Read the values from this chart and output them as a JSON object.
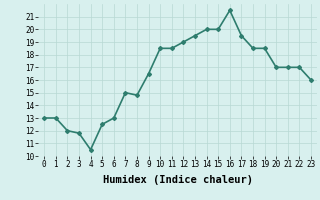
{
  "x": [
    0,
    1,
    2,
    3,
    4,
    5,
    6,
    7,
    8,
    9,
    10,
    11,
    12,
    13,
    14,
    15,
    16,
    17,
    18,
    19,
    20,
    21,
    22,
    23
  ],
  "y": [
    13,
    13,
    12,
    11.8,
    10.5,
    12.5,
    13,
    15,
    14.8,
    16.5,
    18.5,
    18.5,
    19,
    19.5,
    20,
    20,
    21.5,
    19.5,
    18.5,
    18.5,
    17,
    17,
    17,
    16
  ],
  "line_color": "#2e7d6e",
  "marker": "D",
  "marker_size": 2,
  "bg_color": "#d8f0ee",
  "grid_color": "#b8d8d4",
  "xlabel": "Humidex (Indice chaleur)",
  "ylim": [
    10,
    22
  ],
  "xlim": [
    -0.5,
    23.5
  ],
  "yticks": [
    10,
    11,
    12,
    13,
    14,
    15,
    16,
    17,
    18,
    19,
    20,
    21
  ],
  "xticks": [
    0,
    1,
    2,
    3,
    4,
    5,
    6,
    7,
    8,
    9,
    10,
    11,
    12,
    13,
    14,
    15,
    16,
    17,
    18,
    19,
    20,
    21,
    22,
    23
  ],
  "tick_label_size": 5.5,
  "xlabel_size": 7.5,
  "line_width": 1.2
}
